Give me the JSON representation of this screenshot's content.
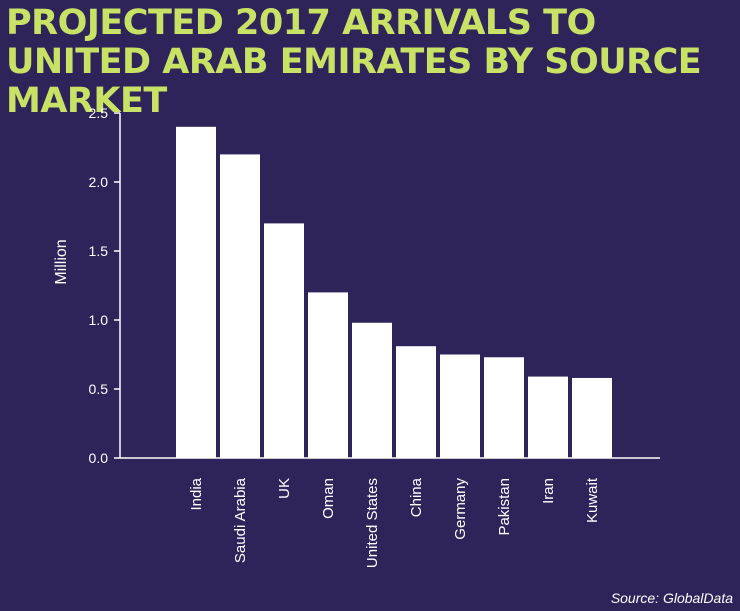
{
  "chart_data": {
    "type": "bar",
    "title": "PROJECTED 2017 ARRIVALS TO UNITED ARAB EMIRATES BY SOURCE MARKET",
    "xlabel": "",
    "ylabel": "Million",
    "ylim": [
      0,
      2.5
    ],
    "yticks": [
      "0.0",
      "0.5",
      "1.0",
      "1.5",
      "2.0",
      "2.5"
    ],
    "grid": false,
    "categories": [
      "India",
      "Saudi Arabia",
      "UK",
      "Oman",
      "United States",
      "China",
      "Germany",
      "Pakistan",
      "Iran",
      "Kuwait"
    ],
    "values": [
      2.4,
      2.2,
      1.7,
      1.2,
      0.98,
      0.81,
      0.75,
      0.73,
      0.59,
      0.58
    ],
    "source": "Source:  GlobalData"
  },
  "colors": {
    "background": "#2e2459",
    "title": "#c9e265",
    "bar": "#ffffff",
    "axis": "#ffffff",
    "text": "#ffffff"
  }
}
